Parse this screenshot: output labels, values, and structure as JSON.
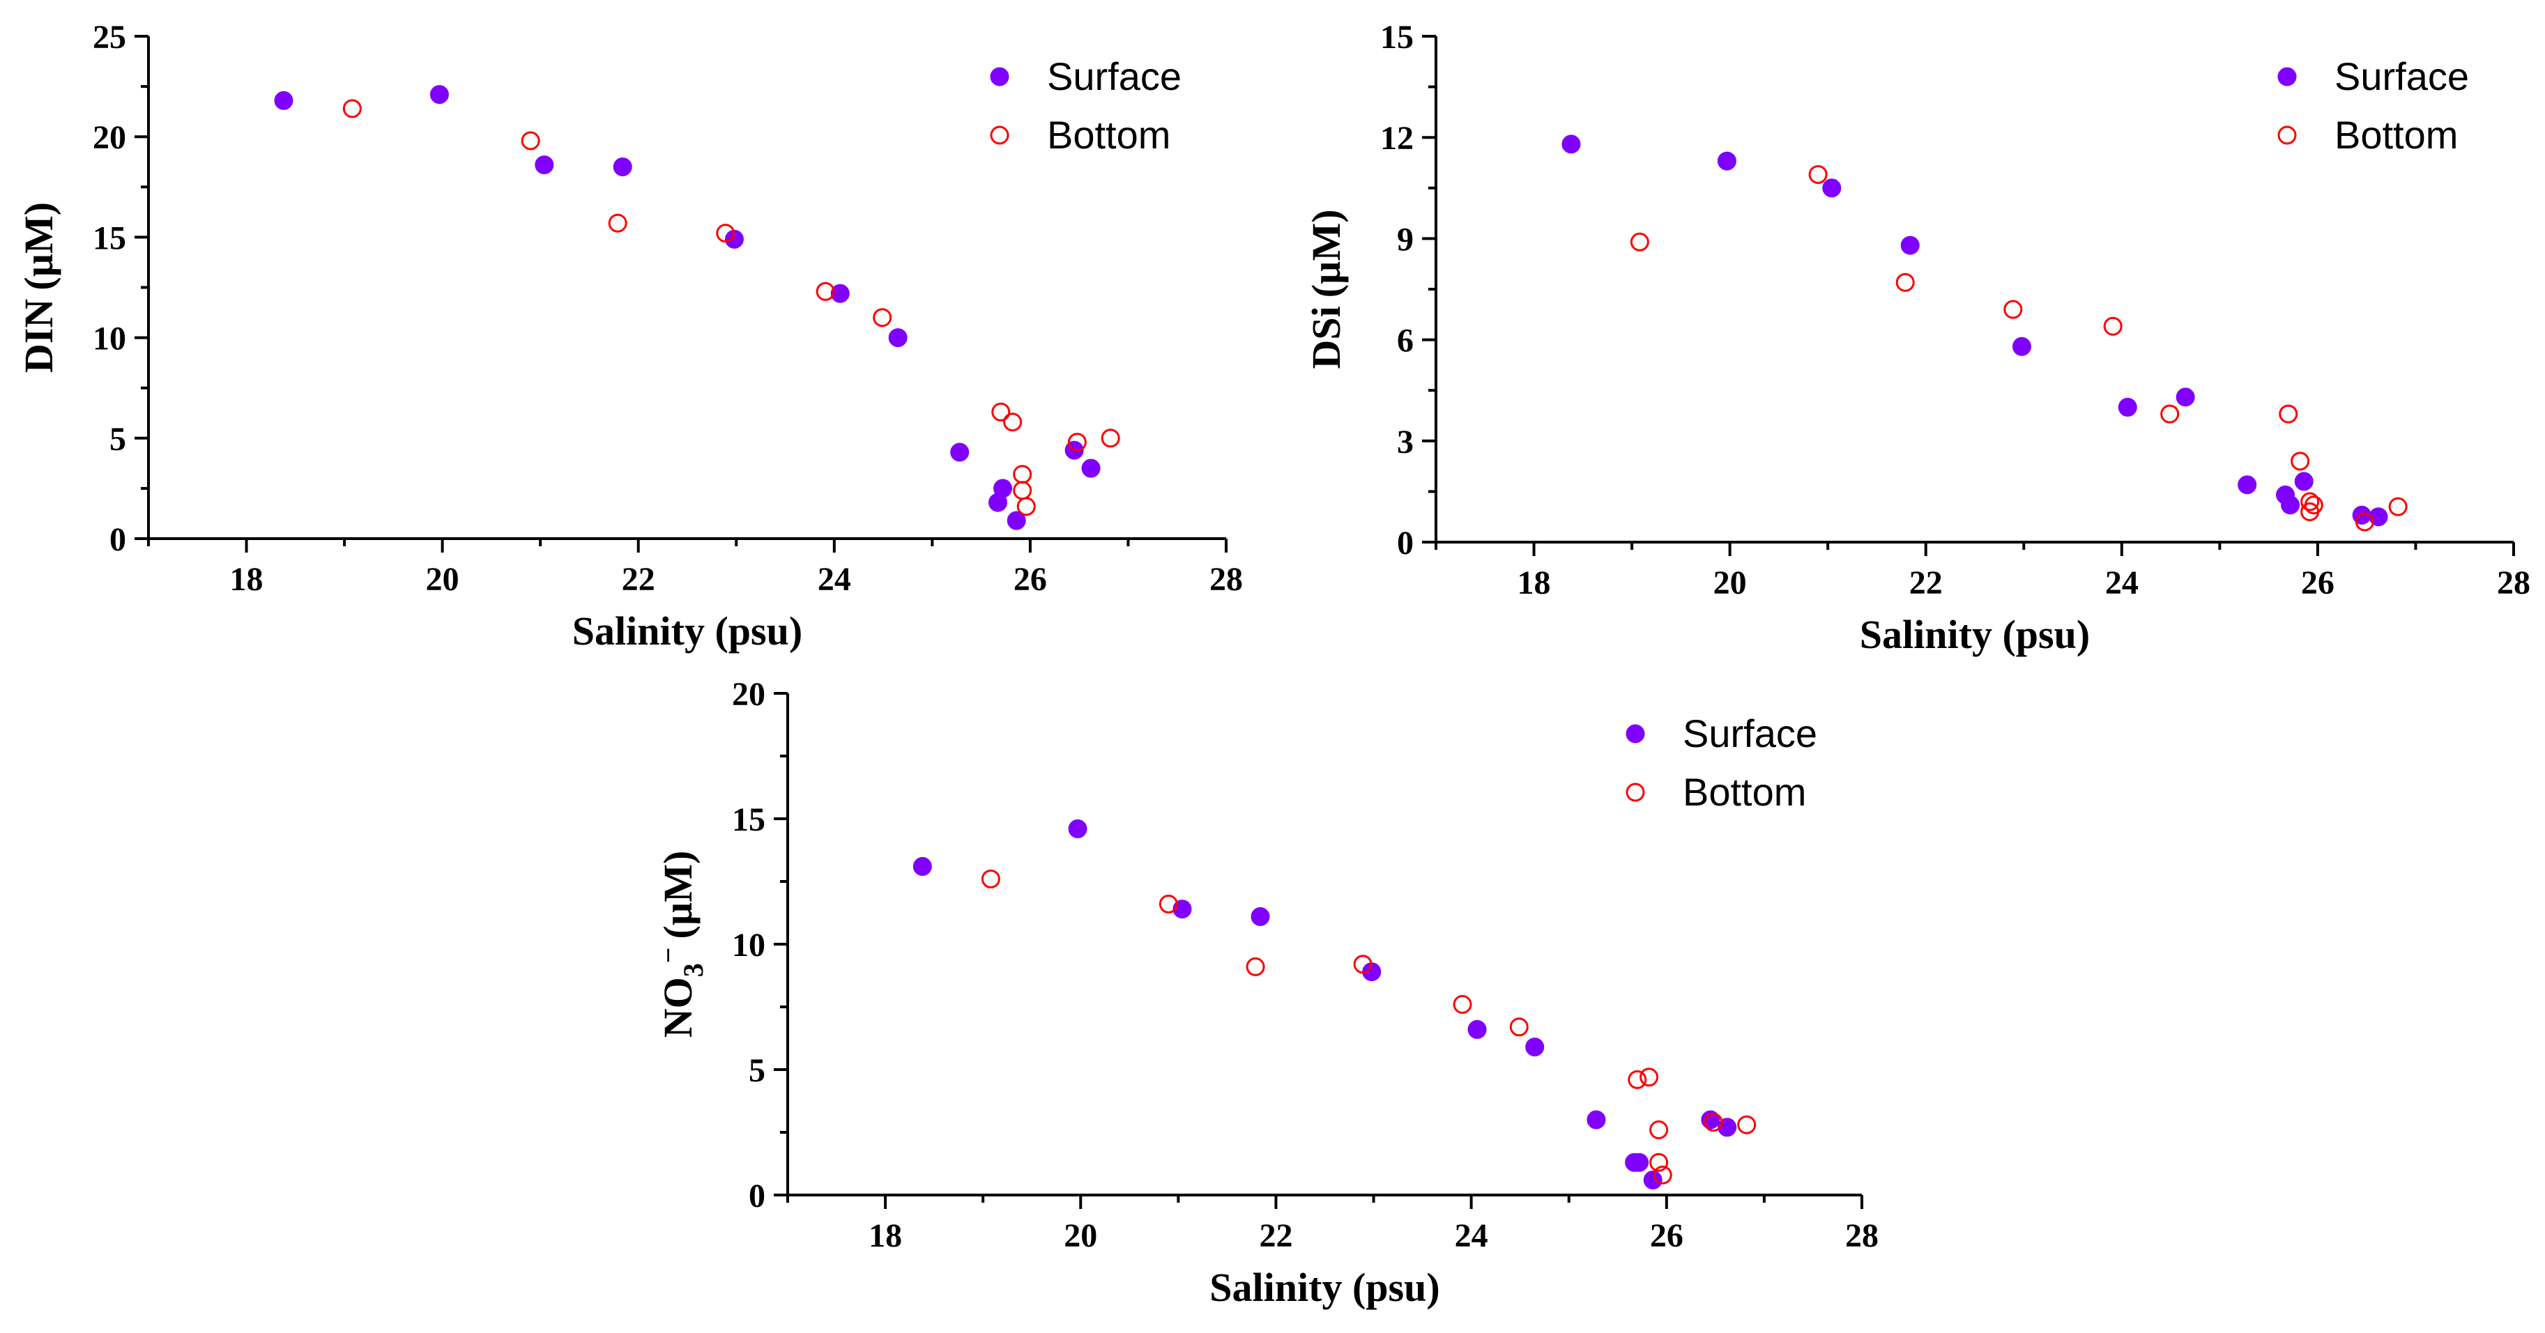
{
  "figure": {
    "colors": {
      "surface": "#8000ff",
      "bottom": "#ff0000"
    }
  },
  "chart_data": [
    {
      "id": "din",
      "type": "scatter",
      "title": "",
      "xlabel": "Salinity (psu)",
      "ylabel": "DIN (µM)",
      "ylabel_main": "DIN",
      "ylabel_unit": "(µM)",
      "xlim": [
        17,
        28
      ],
      "ylim": [
        0,
        25
      ],
      "xticks": [
        18,
        20,
        22,
        24,
        26,
        28
      ],
      "yticks": [
        0,
        5,
        10,
        15,
        20,
        25
      ],
      "legend": [
        "Surface",
        "Bottom"
      ],
      "legend_position": "top-right",
      "series": [
        {
          "name": "Surface",
          "marker": "filled-circle",
          "x": [
            18.38,
            19.97,
            21.04,
            21.84,
            22.98,
            24.06,
            24.65,
            25.28,
            25.67,
            25.72,
            25.86,
            26.45,
            26.62
          ],
          "y": [
            21.8,
            22.1,
            18.6,
            18.5,
            14.9,
            12.2,
            10.0,
            4.3,
            1.8,
            2.5,
            0.9,
            4.4,
            3.5
          ]
        },
        {
          "name": "Bottom",
          "marker": "open-circle",
          "x": [
            19.08,
            20.9,
            21.79,
            22.89,
            23.91,
            24.49,
            25.7,
            25.82,
            25.92,
            25.92,
            25.96,
            26.48,
            26.82
          ],
          "y": [
            21.4,
            19.8,
            15.7,
            15.2,
            12.3,
            11.0,
            6.3,
            5.8,
            3.2,
            2.4,
            1.6,
            4.8,
            5.0
          ]
        }
      ]
    },
    {
      "id": "dsi",
      "type": "scatter",
      "title": "",
      "xlabel": "Salinity (psu)",
      "ylabel": "DSi (µM)",
      "ylabel_main": "DSi",
      "ylabel_unit": "(µM)",
      "xlim": [
        17,
        28
      ],
      "ylim": [
        0,
        15
      ],
      "xticks": [
        18,
        20,
        22,
        24,
        26,
        28
      ],
      "yticks": [
        0,
        3,
        6,
        9,
        12,
        15
      ],
      "legend": [
        "Surface",
        "Bottom"
      ],
      "legend_position": "top-right",
      "series": [
        {
          "name": "Surface",
          "marker": "filled-circle",
          "x": [
            18.38,
            19.97,
            21.04,
            21.84,
            22.98,
            24.06,
            24.65,
            25.28,
            25.67,
            25.72,
            25.86,
            26.45,
            26.62
          ],
          "y": [
            11.8,
            11.3,
            10.5,
            8.8,
            5.8,
            4.0,
            4.3,
            1.7,
            1.4,
            1.1,
            1.8,
            0.8,
            0.75
          ]
        },
        {
          "name": "Bottom",
          "marker": "open-circle",
          "x": [
            19.08,
            20.9,
            21.79,
            22.89,
            23.91,
            24.49,
            25.7,
            25.82,
            25.92,
            25.92,
            25.96,
            26.48,
            26.82
          ],
          "y": [
            8.9,
            10.9,
            7.7,
            6.9,
            6.4,
            3.8,
            3.8,
            2.4,
            1.2,
            0.9,
            1.1,
            0.6,
            1.05
          ]
        }
      ]
    },
    {
      "id": "no3",
      "type": "scatter",
      "title": "",
      "xlabel": "Salinity (psu)",
      "ylabel": "NO₃⁻ (µM)",
      "ylabel_main": "NO",
      "ylabel_sub": "3",
      "ylabel_sup": "−",
      "ylabel_unit": "(µM)",
      "xlim": [
        17,
        28
      ],
      "ylim": [
        0,
        20
      ],
      "xticks": [
        18,
        20,
        22,
        24,
        26,
        28
      ],
      "yticks": [
        0,
        5,
        10,
        15,
        20
      ],
      "legend": [
        "Surface",
        "Bottom"
      ],
      "legend_position": "top-right",
      "series": [
        {
          "name": "Surface",
          "marker": "filled-circle",
          "x": [
            18.38,
            19.97,
            21.04,
            21.84,
            22.98,
            24.06,
            24.65,
            25.28,
            25.67,
            25.72,
            25.86,
            26.45,
            26.62
          ],
          "y": [
            13.1,
            14.6,
            11.4,
            11.1,
            8.9,
            6.6,
            5.9,
            3.0,
            1.3,
            1.3,
            0.6,
            3.0,
            2.7
          ]
        },
        {
          "name": "Bottom",
          "marker": "open-circle",
          "x": [
            19.08,
            20.9,
            21.79,
            22.89,
            23.91,
            24.49,
            25.7,
            25.82,
            25.92,
            25.92,
            25.96,
            26.48,
            26.82
          ],
          "y": [
            12.6,
            11.6,
            9.1,
            9.2,
            7.6,
            6.7,
            4.6,
            4.7,
            2.6,
            1.3,
            0.8,
            2.9,
            2.8
          ]
        }
      ]
    }
  ]
}
